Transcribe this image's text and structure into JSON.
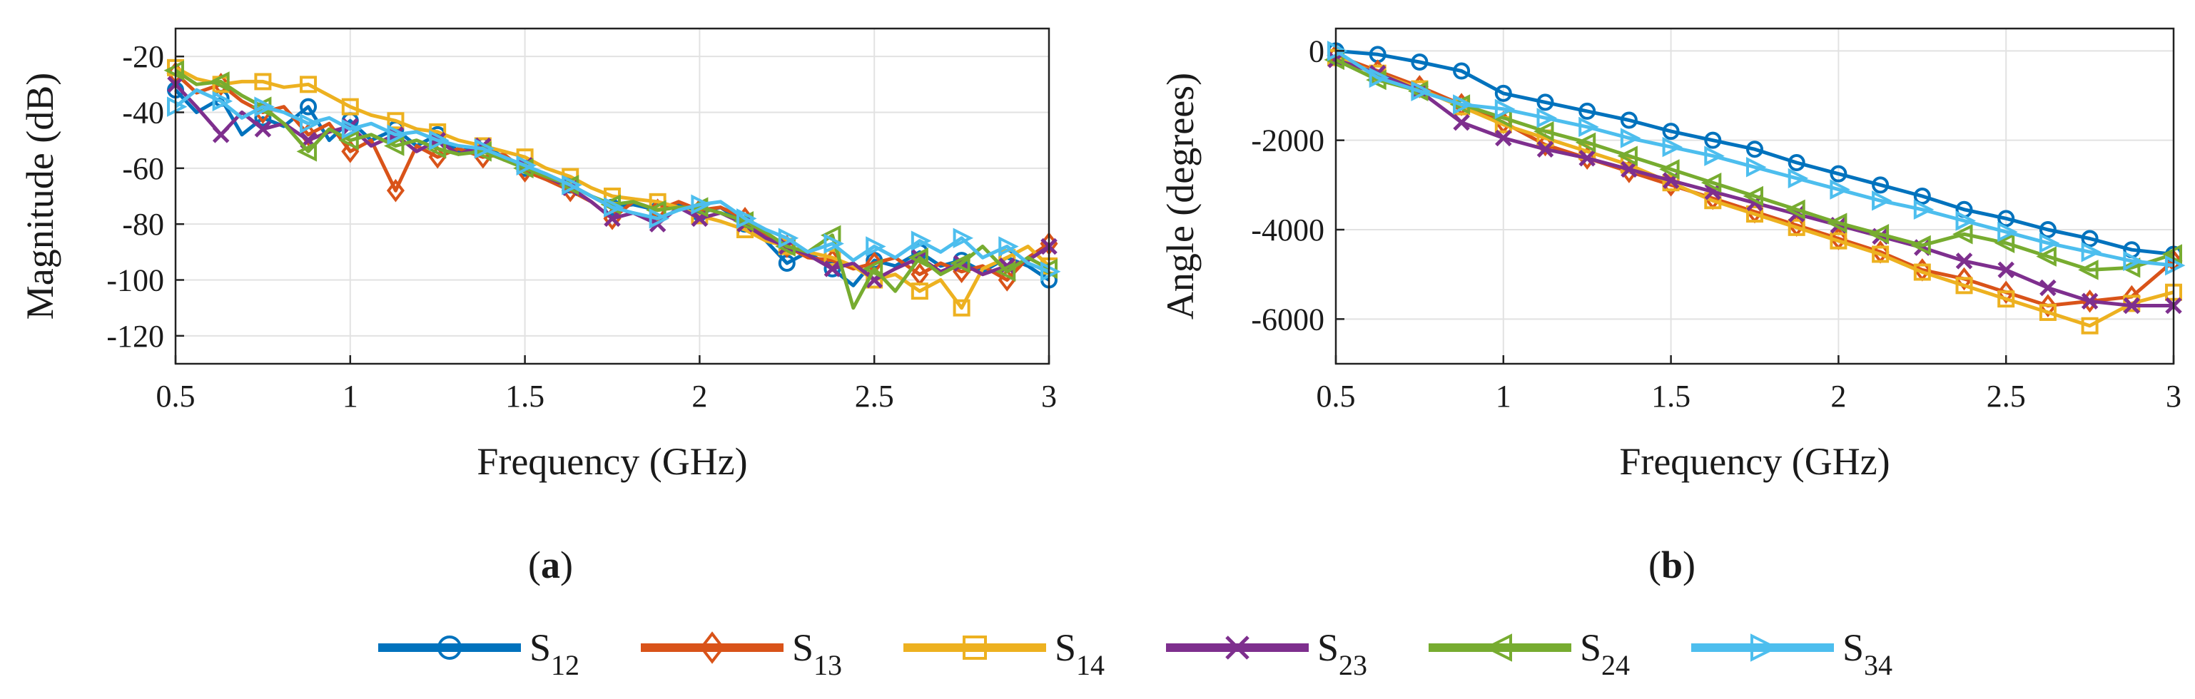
{
  "chart_data": [
    {
      "type": "line",
      "panel_label": "a",
      "xlabel": "Frequency (GHz)",
      "ylabel": "Magnitude (dB)",
      "xlim": [
        0.5,
        3
      ],
      "ylim": [
        -130,
        -10
      ],
      "xticks": [
        0.5,
        1,
        1.5,
        2,
        2.5,
        3
      ],
      "xtick_labels": [
        "0.5",
        "1",
        "1.5",
        "2",
        "2.5",
        "3"
      ],
      "yticks": [
        -120,
        -100,
        -80,
        -60,
        -40,
        -20
      ],
      "ytick_labels": [
        "-120",
        "-100",
        "-80",
        "-60",
        "-40",
        "-20"
      ],
      "grid": true,
      "series": [
        {
          "name": "S12",
          "x": [
            0.5,
            0.56,
            0.63,
            0.69,
            0.75,
            0.81,
            0.88,
            0.94,
            1.0,
            1.06,
            1.13,
            1.19,
            1.25,
            1.31,
            1.38,
            1.44,
            1.5,
            1.56,
            1.63,
            1.69,
            1.75,
            1.81,
            1.88,
            1.94,
            2.0,
            2.06,
            2.13,
            2.19,
            2.25,
            2.31,
            2.38,
            2.44,
            2.5,
            2.56,
            2.63,
            2.69,
            2.75,
            2.81,
            2.88,
            2.94,
            3.0
          ],
          "y": [
            -32,
            -40,
            -35,
            -48,
            -42,
            -45,
            -38,
            -50,
            -43,
            -50,
            -46,
            -52,
            -48,
            -54,
            -52,
            -56,
            -60,
            -63,
            -66,
            -70,
            -74,
            -73,
            -75,
            -73,
            -76,
            -74,
            -80,
            -86,
            -94,
            -90,
            -96,
            -102,
            -93,
            -95,
            -90,
            -95,
            -93,
            -97,
            -92,
            -95,
            -100
          ]
        },
        {
          "name": "S13",
          "x": [
            0.5,
            0.56,
            0.63,
            0.69,
            0.75,
            0.81,
            0.88,
            0.94,
            1.0,
            1.06,
            1.13,
            1.19,
            1.25,
            1.31,
            1.38,
            1.44,
            1.5,
            1.56,
            1.63,
            1.69,
            1.75,
            1.81,
            1.88,
            1.94,
            2.0,
            2.06,
            2.13,
            2.19,
            2.25,
            2.31,
            2.38,
            2.44,
            2.5,
            2.56,
            2.63,
            2.69,
            2.75,
            2.81,
            2.88,
            2.94,
            3.0
          ],
          "y": [
            -26,
            -33,
            -30,
            -36,
            -40,
            -38,
            -48,
            -44,
            -54,
            -50,
            -68,
            -52,
            -56,
            -53,
            -56,
            -55,
            -61,
            -64,
            -68,
            -72,
            -78,
            -72,
            -75,
            -72,
            -75,
            -74,
            -78,
            -84,
            -88,
            -92,
            -93,
            -96,
            -94,
            -92,
            -98,
            -94,
            -97,
            -95,
            -100,
            -92,
            -87
          ]
        },
        {
          "name": "S14",
          "x": [
            0.5,
            0.56,
            0.63,
            0.69,
            0.75,
            0.81,
            0.88,
            0.94,
            1.0,
            1.06,
            1.13,
            1.19,
            1.25,
            1.31,
            1.38,
            1.44,
            1.5,
            1.56,
            1.63,
            1.69,
            1.75,
            1.81,
            1.88,
            1.94,
            2.0,
            2.06,
            2.13,
            2.19,
            2.25,
            2.31,
            2.38,
            2.44,
            2.5,
            2.56,
            2.63,
            2.69,
            2.75,
            2.81,
            2.88,
            2.94,
            3.0
          ],
          "y": [
            -24,
            -28,
            -30,
            -29,
            -29,
            -31,
            -30,
            -34,
            -38,
            -41,
            -43,
            -46,
            -47,
            -50,
            -52,
            -54,
            -56,
            -60,
            -63,
            -67,
            -70,
            -71,
            -72,
            -74,
            -77,
            -79,
            -82,
            -86,
            -88,
            -90,
            -92,
            -95,
            -100,
            -98,
            -104,
            -100,
            -110,
            -96,
            -92,
            -88,
            -95
          ]
        },
        {
          "name": "S23",
          "x": [
            0.5,
            0.56,
            0.63,
            0.69,
            0.75,
            0.81,
            0.88,
            0.94,
            1.0,
            1.06,
            1.13,
            1.19,
            1.25,
            1.31,
            1.38,
            1.44,
            1.5,
            1.56,
            1.63,
            1.69,
            1.75,
            1.81,
            1.88,
            1.94,
            2.0,
            2.06,
            2.13,
            2.19,
            2.25,
            2.31,
            2.38,
            2.44,
            2.5,
            2.56,
            2.63,
            2.69,
            2.75,
            2.81,
            2.88,
            2.94,
            3.0
          ],
          "y": [
            -30,
            -38,
            -48,
            -40,
            -46,
            -44,
            -50,
            -47,
            -45,
            -52,
            -48,
            -54,
            -50,
            -55,
            -52,
            -57,
            -59,
            -63,
            -67,
            -72,
            -78,
            -76,
            -80,
            -74,
            -78,
            -76,
            -80,
            -85,
            -88,
            -91,
            -96,
            -94,
            -100,
            -96,
            -92,
            -97,
            -94,
            -98,
            -95,
            -93,
            -88
          ]
        },
        {
          "name": "S24",
          "x": [
            0.5,
            0.56,
            0.63,
            0.69,
            0.75,
            0.81,
            0.88,
            0.94,
            1.0,
            1.06,
            1.13,
            1.19,
            1.25,
            1.31,
            1.38,
            1.44,
            1.5,
            1.56,
            1.63,
            1.69,
            1.75,
            1.81,
            1.88,
            1.94,
            2.0,
            2.06,
            2.13,
            2.19,
            2.25,
            2.31,
            2.38,
            2.44,
            2.5,
            2.56,
            2.63,
            2.69,
            2.75,
            2.81,
            2.88,
            2.94,
            3.0
          ],
          "y": [
            -25,
            -30,
            -29,
            -34,
            -38,
            -44,
            -54,
            -46,
            -50,
            -48,
            -52,
            -50,
            -53,
            -55,
            -54,
            -57,
            -60,
            -63,
            -66,
            -70,
            -73,
            -72,
            -75,
            -74,
            -74,
            -76,
            -79,
            -83,
            -88,
            -90,
            -84,
            -110,
            -96,
            -104,
            -92,
            -98,
            -94,
            -88,
            -97,
            -92,
            -96
          ]
        },
        {
          "name": "S34",
          "x": [
            0.5,
            0.56,
            0.63,
            0.69,
            0.75,
            0.81,
            0.88,
            0.94,
            1.0,
            1.06,
            1.13,
            1.19,
            1.25,
            1.31,
            1.38,
            1.44,
            1.5,
            1.56,
            1.63,
            1.69,
            1.75,
            1.81,
            1.88,
            1.94,
            2.0,
            2.06,
            2.13,
            2.19,
            2.25,
            2.31,
            2.38,
            2.44,
            2.5,
            2.56,
            2.63,
            2.69,
            2.75,
            2.81,
            2.88,
            2.94,
            3.0
          ],
          "y": [
            -38,
            -32,
            -36,
            -42,
            -38,
            -40,
            -44,
            -42,
            -46,
            -44,
            -48,
            -47,
            -50,
            -52,
            -53,
            -56,
            -59,
            -62,
            -66,
            -70,
            -74,
            -76,
            -78,
            -75,
            -73,
            -72,
            -78,
            -82,
            -85,
            -90,
            -87,
            -93,
            -88,
            -92,
            -86,
            -90,
            -85,
            -92,
            -88,
            -94,
            -97
          ]
        }
      ]
    },
    {
      "type": "line",
      "panel_label": "b",
      "xlabel": "Frequency (GHz)",
      "ylabel": "Angle (degrees)",
      "xlim": [
        0.5,
        3
      ],
      "ylim": [
        -7000,
        500
      ],
      "xticks": [
        0.5,
        1,
        1.5,
        2,
        2.5,
        3
      ],
      "xtick_labels": [
        "0.5",
        "1",
        "1.5",
        "2",
        "2.5",
        "3"
      ],
      "yticks": [
        -6000,
        -4000,
        -2000,
        0
      ],
      "ytick_labels": [
        "-6000",
        "-4000",
        "-2000",
        "0"
      ],
      "grid": true,
      "series": [
        {
          "name": "S12",
          "x": [
            0.5,
            0.625,
            0.75,
            0.875,
            1.0,
            1.125,
            1.25,
            1.375,
            1.5,
            1.625,
            1.75,
            1.875,
            2.0,
            2.125,
            2.25,
            2.375,
            2.5,
            2.625,
            2.75,
            2.875,
            3.0
          ],
          "y": [
            0,
            -80,
            -250,
            -450,
            -950,
            -1150,
            -1350,
            -1550,
            -1800,
            -2000,
            -2200,
            -2500,
            -2750,
            -3000,
            -3250,
            -3550,
            -3750,
            -4000,
            -4200,
            -4450,
            -4550
          ]
        },
        {
          "name": "S13",
          "x": [
            0.5,
            0.625,
            0.75,
            0.875,
            1.0,
            1.125,
            1.25,
            1.375,
            1.5,
            1.625,
            1.75,
            1.875,
            2.0,
            2.125,
            2.25,
            2.375,
            2.5,
            2.625,
            2.75,
            2.875,
            3.0
          ],
          "y": [
            -100,
            -450,
            -800,
            -1200,
            -1600,
            -2100,
            -2400,
            -2700,
            -3000,
            -3300,
            -3600,
            -3900,
            -4200,
            -4500,
            -4900,
            -5100,
            -5400,
            -5700,
            -5600,
            -5500,
            -4700
          ]
        },
        {
          "name": "S14",
          "x": [
            0.5,
            0.625,
            0.75,
            0.875,
            1.0,
            1.125,
            1.25,
            1.375,
            1.5,
            1.625,
            1.75,
            1.875,
            2.0,
            2.125,
            2.25,
            2.375,
            2.5,
            2.625,
            2.75,
            2.875,
            3.0
          ],
          "y": [
            -150,
            -500,
            -850,
            -1250,
            -1650,
            -1950,
            -2250,
            -2550,
            -2950,
            -3350,
            -3650,
            -3950,
            -4250,
            -4550,
            -4950,
            -5250,
            -5550,
            -5850,
            -6150,
            -5650,
            -5400
          ]
        },
        {
          "name": "S23",
          "x": [
            0.5,
            0.625,
            0.75,
            0.875,
            1.0,
            1.125,
            1.25,
            1.375,
            1.5,
            1.625,
            1.75,
            1.875,
            2.0,
            2.125,
            2.25,
            2.375,
            2.5,
            2.625,
            2.75,
            2.875,
            3.0
          ],
          "y": [
            -200,
            -500,
            -900,
            -1600,
            -1950,
            -2200,
            -2400,
            -2650,
            -2900,
            -3150,
            -3400,
            -3650,
            -3900,
            -4150,
            -4400,
            -4700,
            -4900,
            -5300,
            -5600,
            -5700,
            -5700
          ]
        },
        {
          "name": "S24",
          "x": [
            0.5,
            0.625,
            0.75,
            0.875,
            1.0,
            1.125,
            1.25,
            1.375,
            1.5,
            1.625,
            1.75,
            1.875,
            2.0,
            2.125,
            2.25,
            2.375,
            2.5,
            2.625,
            2.75,
            2.875,
            3.0
          ],
          "y": [
            -200,
            -650,
            -900,
            -1200,
            -1500,
            -1800,
            -2050,
            -2350,
            -2650,
            -2950,
            -3250,
            -3550,
            -3850,
            -4100,
            -4350,
            -4100,
            -4300,
            -4600,
            -4900,
            -4850,
            -4550
          ]
        },
        {
          "name": "S34",
          "x": [
            0.5,
            0.625,
            0.75,
            0.875,
            1.0,
            1.125,
            1.25,
            1.375,
            1.5,
            1.625,
            1.75,
            1.875,
            2.0,
            2.125,
            2.25,
            2.375,
            2.5,
            2.625,
            2.75,
            2.875,
            3.0
          ],
          "y": [
            0,
            -600,
            -900,
            -1200,
            -1300,
            -1500,
            -1700,
            -1950,
            -2150,
            -2350,
            -2600,
            -2850,
            -3100,
            -3350,
            -3550,
            -3800,
            -4050,
            -4300,
            -4500,
            -4700,
            -4800
          ]
        }
      ]
    }
  ],
  "legend": [
    {
      "base": "S",
      "sub": "12",
      "color": "#0072BD",
      "marker": "circle"
    },
    {
      "base": "S",
      "sub": "13",
      "color": "#D95319",
      "marker": "diamond"
    },
    {
      "base": "S",
      "sub": "14",
      "color": "#EDB120",
      "marker": "square"
    },
    {
      "base": "S",
      "sub": "23",
      "color": "#7E2F8E",
      "marker": "x"
    },
    {
      "base": "S",
      "sub": "24",
      "color": "#77AC30",
      "marker": "triangle-left"
    },
    {
      "base": "S",
      "sub": "34",
      "color": "#4DBEEE",
      "marker": "triangle-right"
    }
  ],
  "panel_labels": {
    "a_open": "(",
    "a": "a",
    "a_close": ")",
    "b_open": "(",
    "b": "b",
    "b_close": ")"
  }
}
